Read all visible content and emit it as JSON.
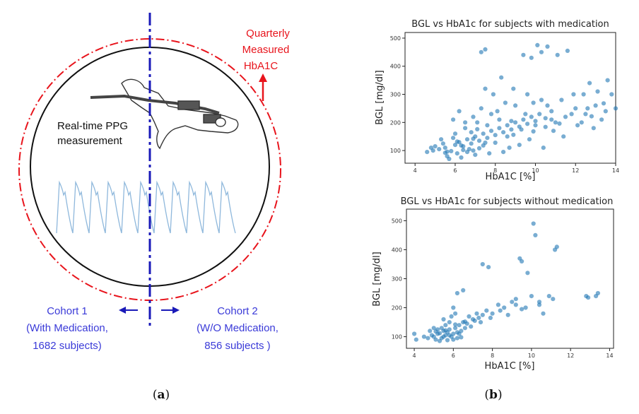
{
  "panel_a": {
    "label_left_paren": "(",
    "label_letter": "a",
    "label_right_paren": ")",
    "quarterly": [
      "Quarterly",
      "Measured",
      "HbA1C"
    ],
    "ppg": [
      "Real-time PPG",
      "measurement"
    ],
    "cohort1": [
      "Cohort 1",
      "(With Medication,",
      "1682 subjects)"
    ],
    "cohort2": [
      "Cohort 2",
      "(W/O Medication,",
      "856 subjects )"
    ],
    "colors": {
      "red": "#e8141c",
      "blue": "#1a1ab8",
      "cohort_text": "#3a3ad8",
      "ppg_wave": "#8fb8dc"
    },
    "icons": [
      "finger-sensor-icon",
      "ppg-waveform-icon"
    ]
  },
  "panel_b": {
    "label_left_paren": "(",
    "label_letter": "b",
    "label_right_paren": ")"
  },
  "chart_data": [
    {
      "type": "scatter",
      "title": "BGL vs HbA1c for subjects with medication",
      "xlabel": "HbA1C [%]",
      "ylabel": "BGL [mg/dl]",
      "xlim": [
        3.5,
        14
      ],
      "ylim": [
        55,
        520
      ],
      "xticks": [
        "4",
        "6",
        "8",
        "10",
        "12",
        "14"
      ],
      "yticks": [
        "100",
        "200",
        "300",
        "400",
        "500"
      ],
      "color": "#1f77b4",
      "points": [
        [
          5.2,
          105
        ],
        [
          5.5,
          110
        ],
        [
          5.8,
          98
        ],
        [
          6.0,
          120
        ],
        [
          6.2,
          130
        ],
        [
          6.4,
          115
        ],
        [
          6.6,
          140
        ],
        [
          6.8,
          125
        ],
        [
          7.0,
          150
        ],
        [
          7.2,
          135
        ],
        [
          7.4,
          160
        ],
        [
          7.6,
          145
        ],
        [
          7.8,
          170
        ],
        [
          8.0,
          155
        ],
        [
          8.2,
          180
        ],
        [
          8.4,
          165
        ],
        [
          8.6,
          190
        ],
        [
          8.8,
          175
        ],
        [
          9.0,
          200
        ],
        [
          9.2,
          185
        ],
        [
          9.4,
          210
        ],
        [
          9.6,
          195
        ],
        [
          9.8,
          220
        ],
        [
          10.0,
          205
        ],
        [
          10.2,
          230
        ],
        [
          10.5,
          215
        ],
        [
          10.8,
          240
        ],
        [
          11.0,
          200
        ],
        [
          11.5,
          220
        ],
        [
          12.0,
          250
        ],
        [
          12.5,
          230
        ],
        [
          13.0,
          260
        ],
        [
          13.5,
          240
        ],
        [
          14.0,
          250
        ],
        [
          4.6,
          95
        ],
        [
          4.9,
          100
        ],
        [
          5.3,
          140
        ],
        [
          5.6,
          80
        ],
        [
          6.1,
          90
        ],
        [
          6.5,
          200
        ],
        [
          6.9,
          100
        ],
        [
          7.3,
          250
        ],
        [
          7.5,
          320
        ],
        [
          7.3,
          450
        ],
        [
          7.5,
          460
        ],
        [
          8.3,
          360
        ],
        [
          9.4,
          440
        ],
        [
          9.8,
          430
        ],
        [
          10.1,
          475
        ],
        [
          10.3,
          450
        ],
        [
          10.6,
          470
        ],
        [
          11.1,
          440
        ],
        [
          11.6,
          455
        ],
        [
          12.7,
          340
        ],
        [
          12.4,
          300
        ],
        [
          11.9,
          300
        ],
        [
          13.1,
          310
        ],
        [
          13.6,
          350
        ],
        [
          8.9,
          320
        ],
        [
          9.6,
          300
        ],
        [
          10.3,
          280
        ],
        [
          8.5,
          270
        ],
        [
          7.9,
          300
        ],
        [
          6.9,
          220
        ],
        [
          6.2,
          240
        ],
        [
          5.9,
          210
        ],
        [
          6.5,
          180
        ],
        [
          7.1,
          200
        ],
        [
          8.1,
          240
        ],
        [
          9.0,
          260
        ],
        [
          9.9,
          270
        ],
        [
          10.9,
          170
        ],
        [
          11.4,
          150
        ],
        [
          12.1,
          190
        ],
        [
          12.9,
          180
        ],
        [
          13.3,
          210
        ],
        [
          9.2,
          120
        ],
        [
          9.7,
          140
        ],
        [
          10.4,
          110
        ],
        [
          8.7,
          110
        ],
        [
          7.7,
          90
        ],
        [
          6.3,
          75
        ],
        [
          5.7,
          70
        ],
        [
          7.0,
          85
        ],
        [
          8.4,
          95
        ],
        [
          6.7,
          105
        ],
        [
          6.0,
          160
        ],
        [
          5.4,
          125
        ],
        [
          6.6,
          95
        ],
        [
          7.4,
          118
        ],
        [
          8.0,
          128
        ],
        [
          5.0,
          115
        ],
        [
          5.9,
          145
        ],
        [
          6.8,
          165
        ],
        [
          7.6,
          190
        ],
        [
          8.8,
          205
        ],
        [
          9.5,
          230
        ],
        [
          10.6,
          260
        ],
        [
          11.3,
          280
        ],
        [
          12.6,
          250
        ],
        [
          13.8,
          300
        ],
        [
          7.2,
          108
        ],
        [
          6.4,
          102
        ],
        [
          5.6,
          96
        ],
        [
          4.8,
          110
        ],
        [
          8.6,
          150
        ],
        [
          9.3,
          175
        ],
        [
          10.0,
          190
        ],
        [
          10.8,
          210
        ],
        [
          11.8,
          230
        ],
        [
          12.3,
          200
        ],
        [
          7.8,
          230
        ],
        [
          8.2,
          210
        ],
        [
          6.1,
          132
        ],
        [
          6.9,
          142
        ],
        [
          7.5,
          128
        ],
        [
          6.3,
          118
        ],
        [
          5.5,
          92
        ],
        [
          7.1,
          176
        ],
        [
          8.9,
          156
        ],
        [
          9.9,
          168
        ],
        [
          10.5,
          184
        ],
        [
          11.2,
          196
        ],
        [
          12.8,
          222
        ],
        [
          13.4,
          268
        ]
      ]
    },
    {
      "type": "scatter",
      "title": "BGL vs HbA1c for subjects without medication",
      "xlabel": "HbA1C [%]",
      "ylabel": "BGL [mg/dl]",
      "xlim": [
        3.6,
        14.2
      ],
      "ylim": [
        60,
        540
      ],
      "xticks": [
        "4",
        "6",
        "8",
        "10",
        "12",
        "14"
      ],
      "yticks": [
        "100",
        "200",
        "300",
        "400",
        "500"
      ],
      "color": "#1f77b4",
      "points": [
        [
          5.0,
          100
        ],
        [
          5.2,
          110
        ],
        [
          5.4,
          95
        ],
        [
          5.5,
          120
        ],
        [
          5.6,
          105
        ],
        [
          5.7,
          115
        ],
        [
          5.8,
          125
        ],
        [
          5.9,
          100
        ],
        [
          6.0,
          110
        ],
        [
          6.1,
          130
        ],
        [
          6.2,
          95
        ],
        [
          6.3,
          140
        ],
        [
          5.3,
          85
        ],
        [
          5.1,
          90
        ],
        [
          4.9,
          105
        ],
        [
          4.7,
          95
        ],
        [
          4.5,
          100
        ],
        [
          4.1,
          90
        ],
        [
          4.0,
          110
        ],
        [
          6.5,
          150
        ],
        [
          6.8,
          170
        ],
        [
          7.0,
          160
        ],
        [
          7.2,
          180
        ],
        [
          7.5,
          175
        ],
        [
          7.7,
          190
        ],
        [
          7.5,
          350
        ],
        [
          7.8,
          340
        ],
        [
          8.3,
          210
        ],
        [
          8.6,
          200
        ],
        [
          9.0,
          220
        ],
        [
          9.2,
          230
        ],
        [
          9.4,
          370
        ],
        [
          9.5,
          360
        ],
        [
          9.8,
          320
        ],
        [
          10.1,
          490
        ],
        [
          10.2,
          450
        ],
        [
          10.0,
          240
        ],
        [
          10.4,
          210
        ],
        [
          11.2,
          400
        ],
        [
          11.3,
          410
        ],
        [
          11.1,
          230
        ],
        [
          12.8,
          240
        ],
        [
          12.9,
          235
        ],
        [
          13.3,
          240
        ],
        [
          13.4,
          250
        ],
        [
          5.5,
          160
        ],
        [
          5.8,
          150
        ],
        [
          6.0,
          200
        ],
        [
          6.2,
          250
        ],
        [
          6.5,
          260
        ],
        [
          6.4,
          120
        ],
        [
          6.6,
          130
        ],
        [
          5.6,
          140
        ],
        [
          5.4,
          130
        ],
        [
          5.9,
          170
        ],
        [
          6.1,
          180
        ],
        [
          6.3,
          110
        ],
        [
          5.7,
          88
        ],
        [
          5.2,
          125
        ],
        [
          5.0,
          130
        ],
        [
          4.8,
          120
        ],
        [
          6.7,
          145
        ],
        [
          7.1,
          155
        ],
        [
          7.3,
          165
        ],
        [
          8.0,
          180
        ],
        [
          8.4,
          190
        ],
        [
          9.7,
          200
        ],
        [
          10.6,
          180
        ],
        [
          9.2,
          210
        ],
        [
          6.0,
          90
        ],
        [
          5.5,
          100
        ],
        [
          5.8,
          105
        ],
        [
          6.2,
          115
        ],
        [
          5.3,
          112
        ],
        [
          6.4,
          98
        ],
        [
          6.9,
          135
        ],
        [
          7.4,
          150
        ],
        [
          7.9,
          165
        ],
        [
          8.8,
          175
        ],
        [
          9.5,
          195
        ],
        [
          10.4,
          220
        ],
        [
          10.9,
          240
        ],
        [
          5.1,
          118
        ],
        [
          5.6,
          122
        ],
        [
          6.1,
          142
        ],
        [
          6.6,
          152
        ]
      ]
    }
  ]
}
